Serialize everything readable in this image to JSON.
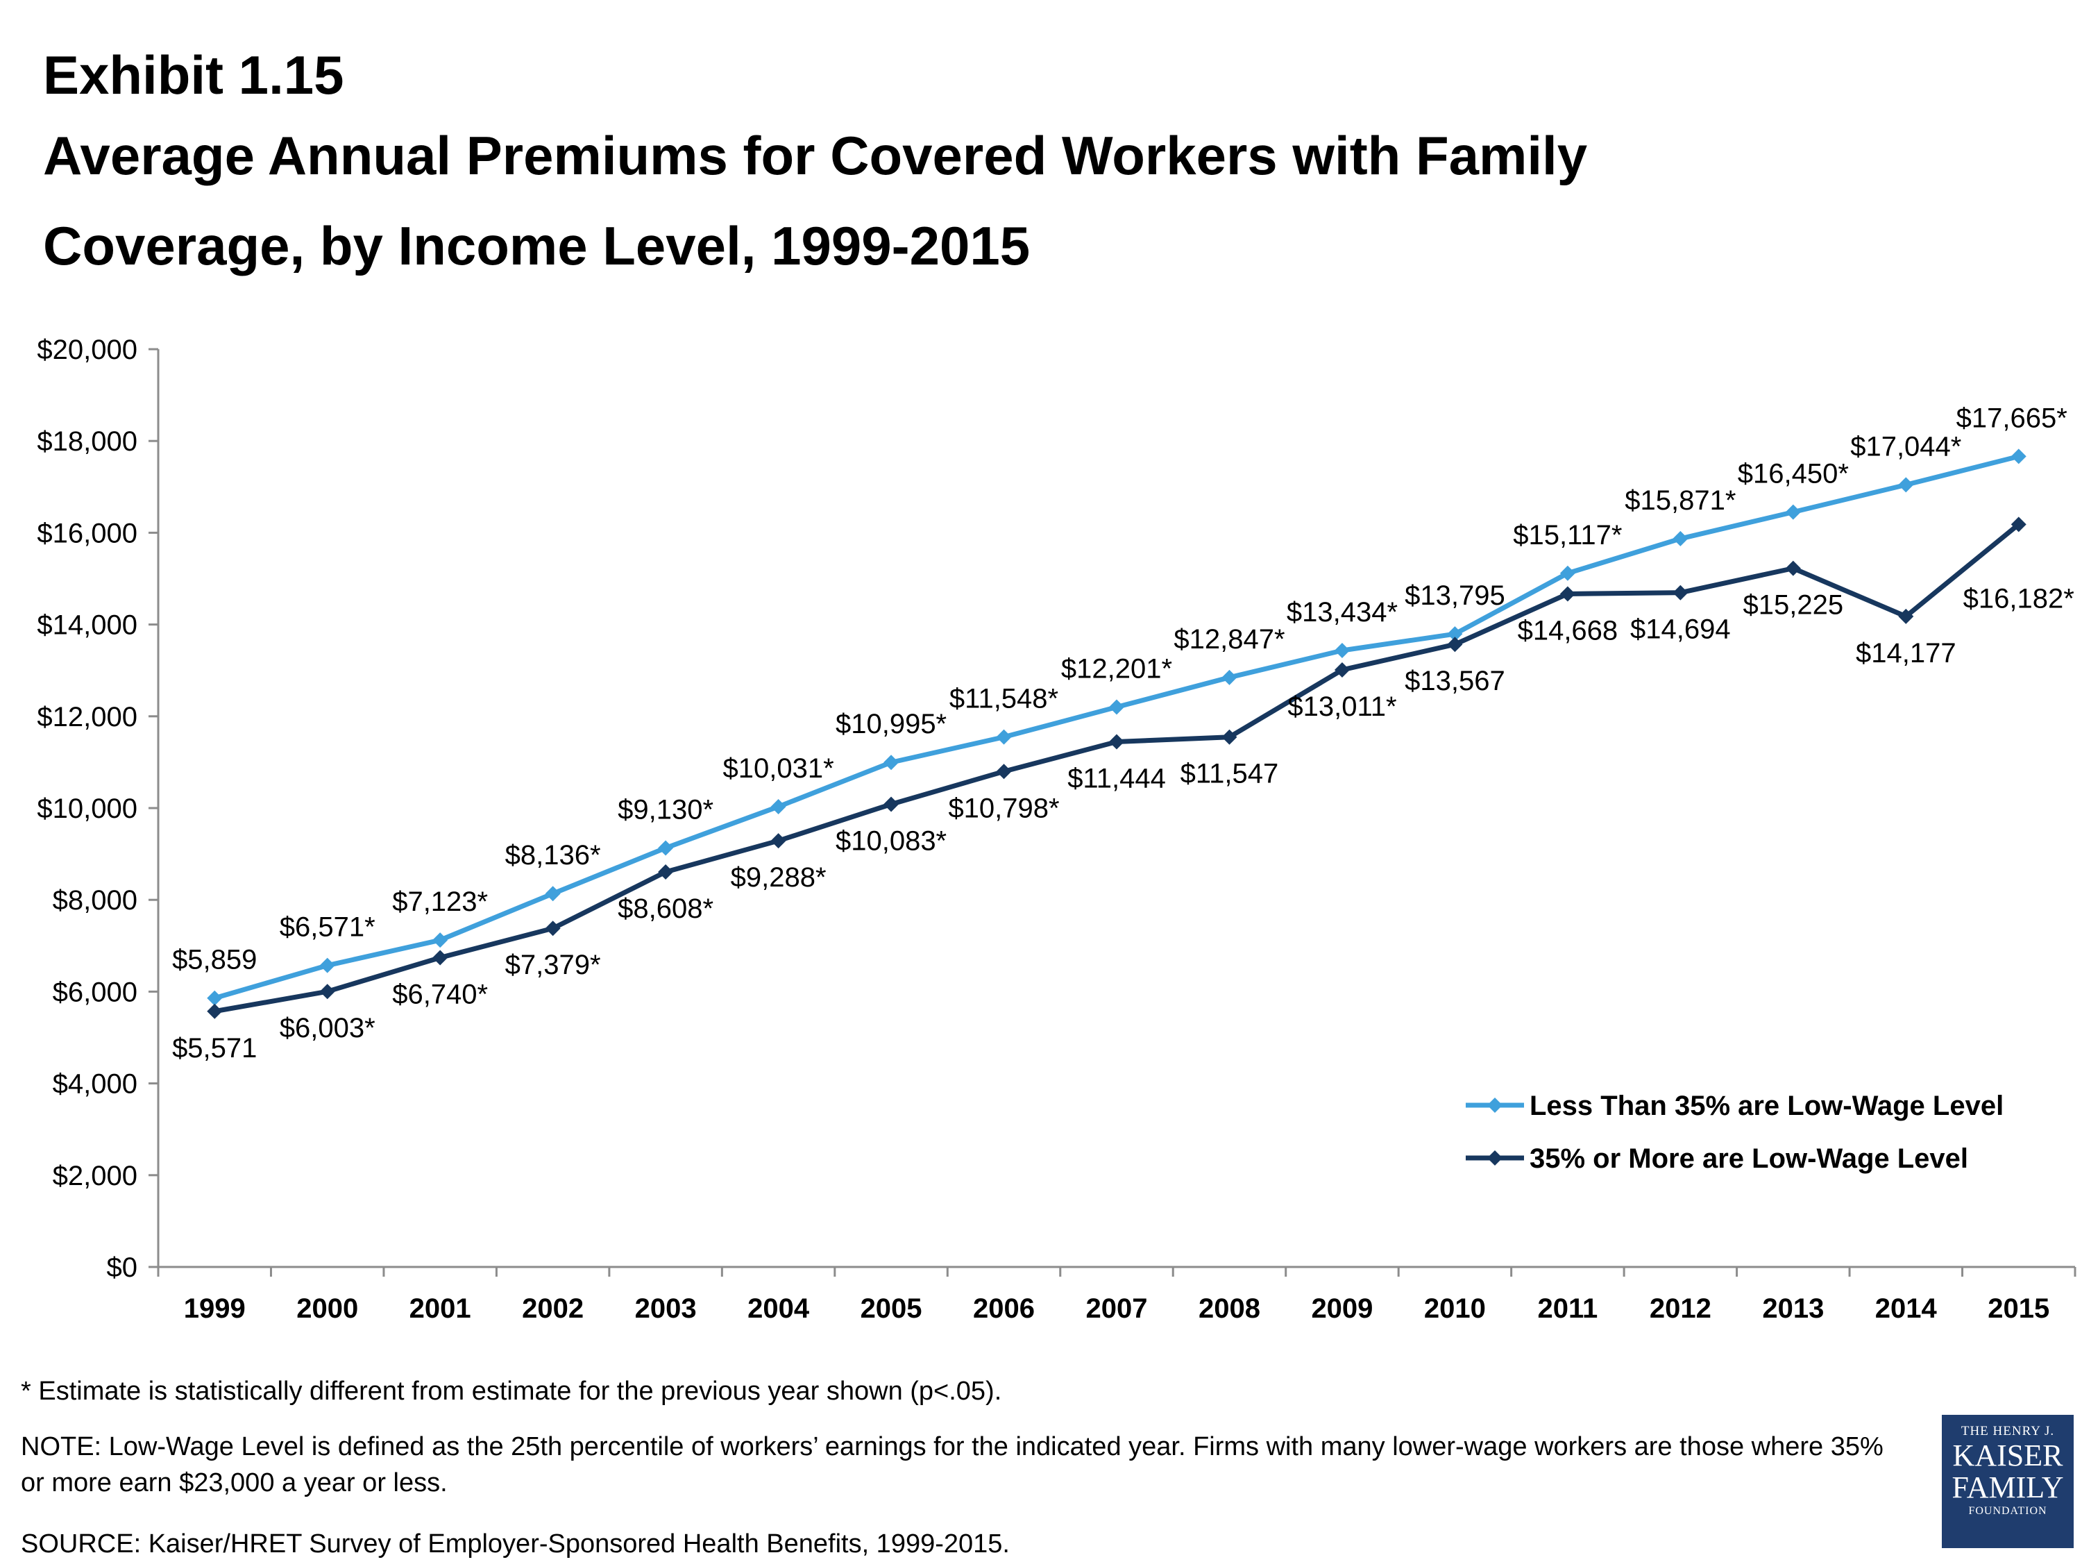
{
  "header": {
    "exhibit": "Exhibit 1.15",
    "title_line1": "Average Annual Premiums for Covered Workers with Family",
    "title_line2": "Coverage, by Income Level, 1999-2015"
  },
  "chart_data": {
    "type": "line",
    "title": "Average Annual Premiums for Covered Workers with Family Coverage, by Income Level, 1999-2015",
    "x": [
      "1999",
      "2000",
      "2001",
      "2002",
      "2003",
      "2004",
      "2005",
      "2006",
      "2007",
      "2008",
      "2009",
      "2010",
      "2011",
      "2012",
      "2013",
      "2014",
      "2015"
    ],
    "ylim": [
      0,
      20000
    ],
    "yticks": [
      0,
      2000,
      4000,
      6000,
      8000,
      10000,
      12000,
      14000,
      16000,
      18000,
      20000
    ],
    "ytick_labels": [
      "$0",
      "$2,000",
      "$4,000",
      "$6,000",
      "$8,000",
      "$10,000",
      "$12,000",
      "$14,000",
      "$16,000",
      "$18,000",
      "$20,000"
    ],
    "grid": false,
    "legend_position": "bottom-right",
    "series": [
      {
        "name": "Less Than 35% are Low-Wage Level",
        "color": "#3fa0dc",
        "marker": "diamond",
        "values": [
          5859,
          6571,
          7123,
          8136,
          9130,
          10031,
          10995,
          11548,
          12201,
          12847,
          13434,
          13795,
          15117,
          15871,
          16450,
          17044,
          17665
        ],
        "labels": [
          "$5,859",
          "$6,571*",
          "$7,123*",
          "$8,136*",
          "$9,130*",
          "$10,031*",
          "$10,995*",
          "$11,548*",
          "$12,201*",
          "$12,847*",
          "$13,434*",
          "$13,795",
          "$15,117*",
          "$15,871*",
          "$16,450*",
          "$17,044*",
          "$17,665*"
        ]
      },
      {
        "name": "35% or More are Low-Wage Level",
        "color": "#17375e",
        "marker": "diamond",
        "values": [
          5571,
          6003,
          6740,
          7379,
          8608,
          9288,
          10083,
          10798,
          11444,
          11547,
          13011,
          13567,
          14668,
          14694,
          15225,
          14177,
          16182
        ],
        "labels": [
          "$5,571",
          "$6,003*",
          "$6,740*",
          "$7,379*",
          "$8,608*",
          "$9,288*",
          "$10,083*",
          "$10,798*",
          "$11,444",
          "$11,547",
          "$13,011*",
          "$13,567",
          "$14,668",
          "$14,694",
          "$15,225",
          "$14,177",
          "$16,182*"
        ]
      }
    ]
  },
  "footnotes": {
    "asterisk": "* Estimate is statistically different from estimate for the previous year shown (p<.05).",
    "note": "NOTE: Low-Wage Level is defined as the 25th percentile of workers’ earnings for the indicated year. Firms with many lower-wage workers are those where 35% or more earn $23,000 a year or less.",
    "source": "SOURCE:  Kaiser/HRET Survey of Employer-Sponsored Health Benefits, 1999-2015."
  },
  "logo": {
    "line1": "THE HENRY J.",
    "line2": "KAISER",
    "line3": "FAMILY",
    "line4": "FOUNDATION"
  }
}
